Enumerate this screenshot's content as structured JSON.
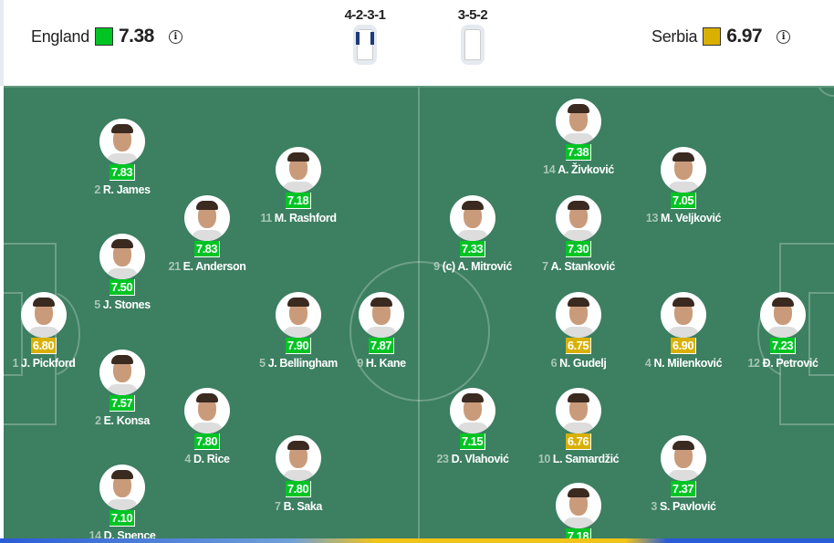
{
  "colors": {
    "good": "#00c424",
    "average": "#d9b000",
    "pitch": "#3c7f61"
  },
  "home": {
    "name": "England",
    "rating": "7.38",
    "rating_color": "#00c424",
    "formation": "4-2-3-1",
    "info_icon": "info-icon"
  },
  "away": {
    "name": "Serbia",
    "rating": "6.97",
    "rating_color": "#d9b000",
    "formation": "3-5-2",
    "info_icon": "info-icon"
  },
  "home_players": [
    {
      "number": "1",
      "name": "J. Pickford",
      "rating": "6.80",
      "level": "average"
    },
    {
      "number": "2",
      "name": "R. James",
      "rating": "7.83",
      "level": "good"
    },
    {
      "number": "5",
      "name": "J. Stones",
      "rating": "7.50",
      "level": "good"
    },
    {
      "number": "2",
      "name": "E. Konsa",
      "rating": "7.57",
      "level": "good"
    },
    {
      "number": "14",
      "name": "D. Spence",
      "rating": "7.10",
      "level": "good"
    },
    {
      "number": "21",
      "name": "E. Anderson",
      "rating": "7.83",
      "level": "good"
    },
    {
      "number": "4",
      "name": "D. Rice",
      "rating": "7.80",
      "level": "good"
    },
    {
      "number": "11",
      "name": "M. Rashford",
      "rating": "7.18",
      "level": "good"
    },
    {
      "number": "5",
      "name": "J. Bellingham",
      "rating": "7.90",
      "level": "good"
    },
    {
      "number": "7",
      "name": "B. Saka",
      "rating": "7.80",
      "level": "good"
    },
    {
      "number": "9",
      "name": "H. Kane",
      "rating": "7.87",
      "level": "good"
    }
  ],
  "away_players": [
    {
      "number": "12",
      "name": "Đ. Petrović",
      "rating": "7.23",
      "level": "good"
    },
    {
      "number": "4",
      "name": "N. Milenković",
      "rating": "6.90",
      "level": "average"
    },
    {
      "number": "6",
      "name": "N. Gudelj",
      "rating": "6.75",
      "level": "average"
    },
    {
      "number": "13",
      "name": "M. Veljković",
      "rating": "7.05",
      "level": "good"
    },
    {
      "number": "3",
      "name": "S. Pavlović",
      "rating": "7.37",
      "level": "good"
    },
    {
      "number": "14",
      "name": "A. Živković",
      "rating": "7.38",
      "level": "good"
    },
    {
      "number": "7",
      "name": "A. Stanković",
      "rating": "7.30",
      "level": "good"
    },
    {
      "number": "10",
      "name": "L. Samardžić",
      "rating": "6.76",
      "level": "average"
    },
    {
      "number": "",
      "name": "",
      "rating": "7.18",
      "level": "good"
    },
    {
      "number": "9",
      "name": "(c) A. Mitrović",
      "rating": "7.33",
      "level": "good"
    },
    {
      "number": "23",
      "name": "D. Vlahović",
      "rating": "7.15",
      "level": "good"
    }
  ]
}
